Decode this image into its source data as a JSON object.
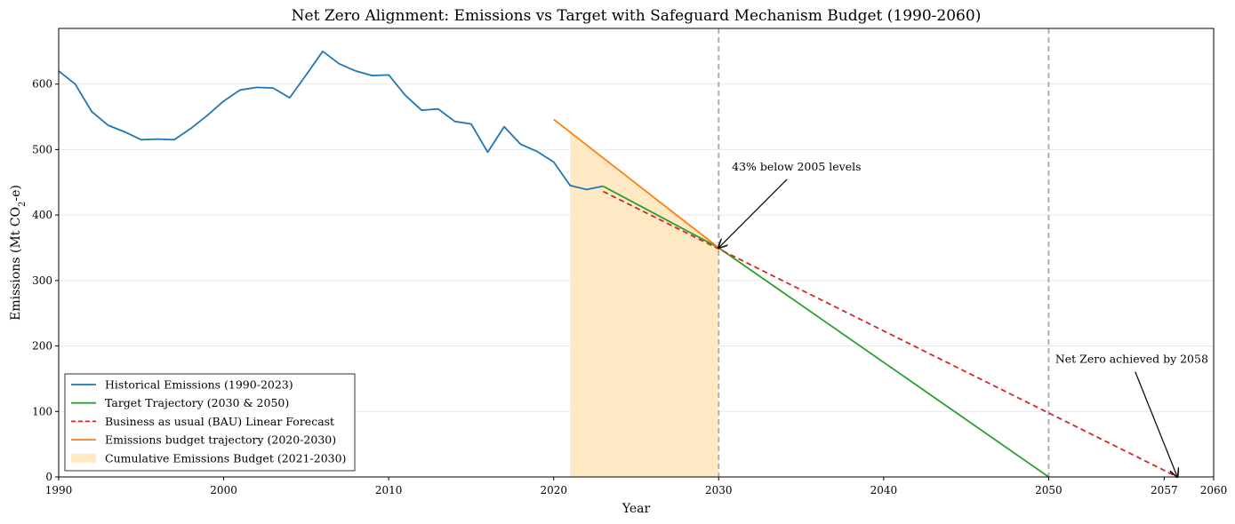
{
  "chart_data": {
    "type": "line",
    "title": "Net Zero Alignment: Emissions vs Target with Safeguard Mechanism Budget (1990-2060)",
    "xlabel": "Year",
    "ylabel": "Emissions (Mt CO",
    "ylabel_sub": "2",
    "ylabel_tail": "-e)",
    "xlim": [
      1990,
      2060
    ],
    "ylim": [
      0,
      685
    ],
    "x_ticks": [
      1990,
      2000,
      2010,
      2020,
      2030,
      2040,
      2050,
      2057,
      2060
    ],
    "y_ticks": [
      0,
      100,
      200,
      300,
      400,
      500,
      600
    ],
    "grid": "horizontal",
    "legend_position": "lower-left",
    "series": [
      {
        "name": "Historical Emissions (1990-2023)",
        "color": "#1f77b4",
        "style": "solid",
        "x": [
          1990,
          1991,
          1992,
          1993,
          1994,
          1995,
          1996,
          1997,
          1998,
          1999,
          2000,
          2001,
          2002,
          2003,
          2004,
          2005,
          2006,
          2007,
          2008,
          2009,
          2010,
          2011,
          2012,
          2013,
          2014,
          2015,
          2016,
          2017,
          2018,
          2019,
          2020,
          2021,
          2022,
          2023
        ],
        "y": [
          620,
          600,
          558,
          537,
          527,
          515,
          516,
          515,
          532,
          552,
          574,
          591,
          595,
          594,
          579,
          614,
          650,
          631,
          620,
          613,
          614,
          583,
          560,
          562,
          543,
          539,
          496,
          535,
          508,
          497,
          481,
          445,
          439,
          444
        ]
      },
      {
        "name": "Target Trajectory (2030 & 2050)",
        "color": "#2ca02c",
        "style": "solid",
        "x": [
          2023,
          2030,
          2050
        ],
        "y": [
          444,
          350,
          0
        ]
      },
      {
        "name": "Business as usual (BAU) Linear Forecast",
        "color": "#d62728",
        "style": "dashed",
        "x": [
          2023,
          2057.8
        ],
        "y": [
          436,
          0
        ]
      },
      {
        "name": "Emissions budget trajectory (2020-2030)",
        "color": "#ff7f0e",
        "style": "solid",
        "x": [
          2020,
          2030
        ],
        "y": [
          546,
          350
        ]
      }
    ],
    "area": {
      "name": "Cumulative Emissions Budget (2021-2030)",
      "color": "#ffe9c4",
      "x": [
        2021,
        2030
      ],
      "y_top": [
        526,
        350
      ]
    },
    "vlines": [
      2030,
      2050
    ],
    "annotations": [
      {
        "text": "43% below 2005 levels",
        "point": [
          2030,
          350
        ],
        "text_at": [
          2030.8,
          468
        ]
      },
      {
        "text": "Net Zero achieved by 2058",
        "point": [
          2057.8,
          0
        ],
        "text_at": [
          2050.4,
          174
        ]
      }
    ]
  }
}
